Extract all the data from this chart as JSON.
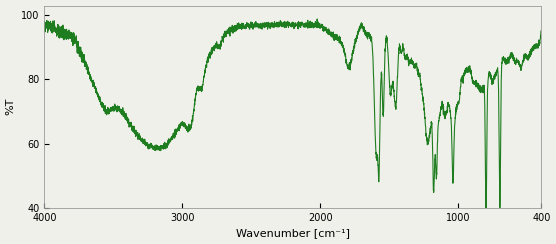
{
  "xlabel": "Wavenumber [cm⁻¹]",
  "ylabel": "%T",
  "xlim": [
    4000,
    400
  ],
  "ylim": [
    40,
    103
  ],
  "yticks": [
    40,
    60,
    80,
    100
  ],
  "xticks": [
    4000,
    3000,
    2000,
    1000,
    400
  ],
  "line_color": "#1e7d1e",
  "background_color": "#f0f0eb",
  "line_width": 0.8,
  "figsize": [
    5.56,
    2.44
  ],
  "dpi": 100
}
